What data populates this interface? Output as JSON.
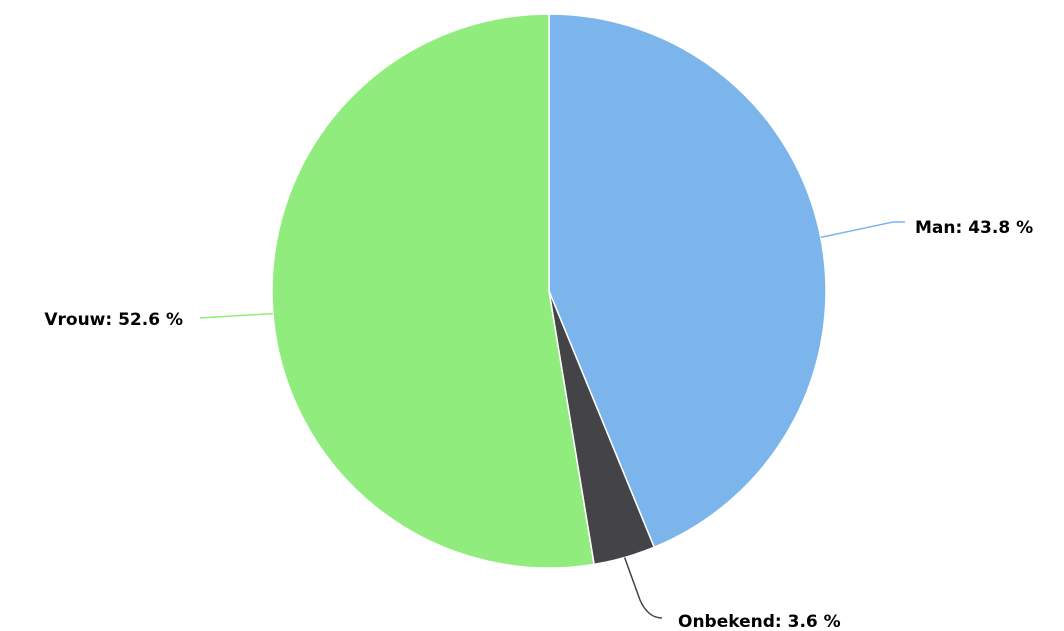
{
  "chart_data": {
    "type": "pie",
    "values": [
      43.8,
      3.6,
      52.6
    ],
    "value_labels": [
      "Man: 43.8 %",
      "Onbekend: 3.6 %",
      "Vrouw: 52.6 %"
    ],
    "colors": [
      "#7cb5ec",
      "#434348",
      "#90ed7d"
    ]
  }
}
